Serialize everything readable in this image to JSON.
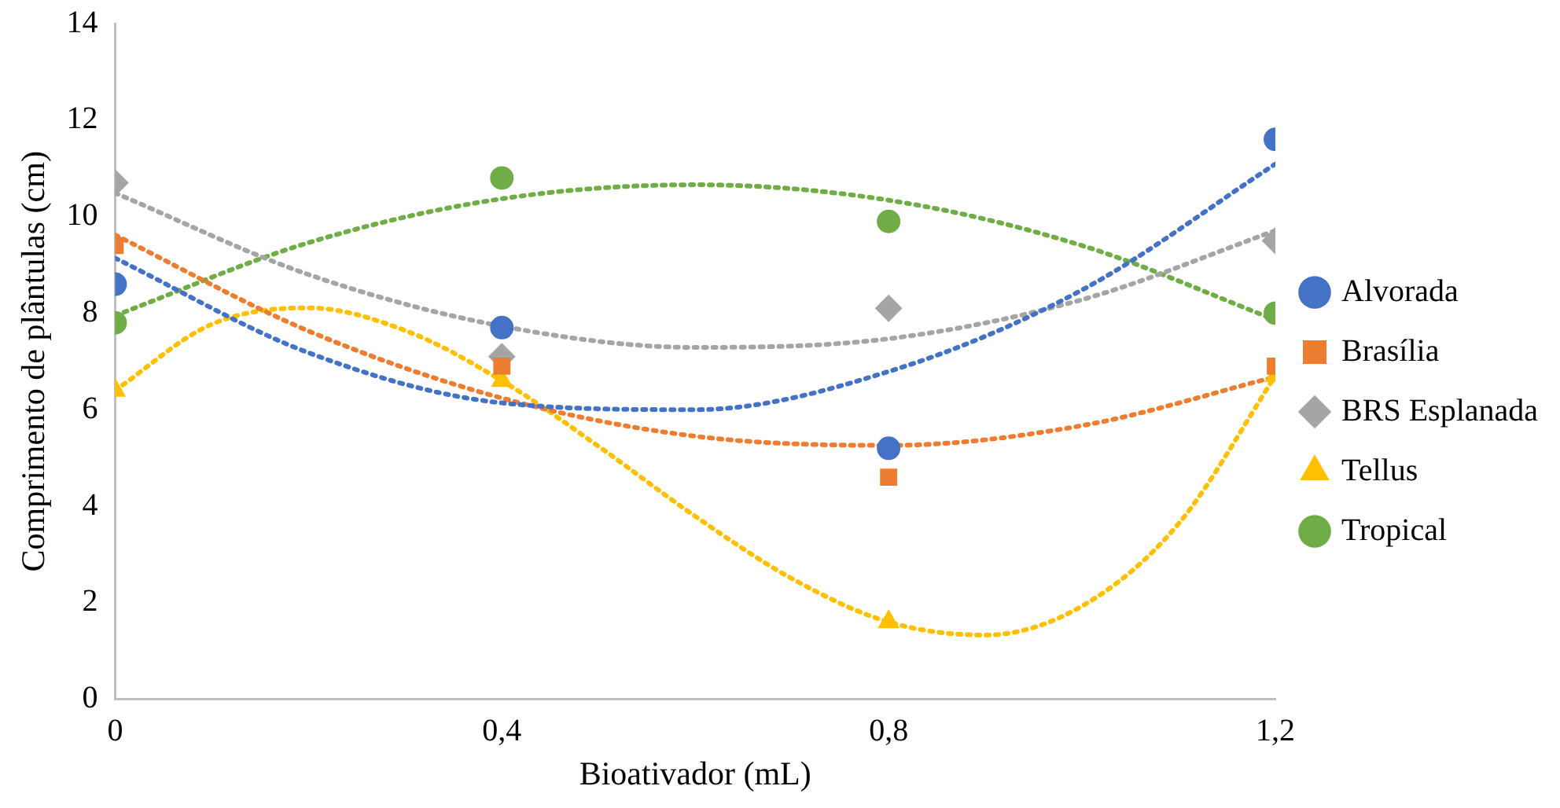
{
  "chart_data": {
    "type": "scatter",
    "xlabel": "Bioativador (mL)",
    "ylabel": "Comprimento de plântulas (cm)",
    "x": [
      0,
      0.4,
      0.8,
      1.2
    ],
    "xlim": [
      0,
      1.2
    ],
    "xticks": [
      0,
      {
        "value": 0.4,
        "label": "0,4"
      },
      {
        "value": 0.8,
        "label": "0,8"
      },
      {
        "value": 1.2,
        "label": "1,2"
      }
    ],
    "ylim": [
      0,
      14
    ],
    "yticks": [
      0,
      2,
      4,
      6,
      8,
      10,
      12,
      14
    ],
    "grid": false,
    "legend": "right",
    "series": [
      {
        "name": "Alvorada",
        "color": "#4472c4",
        "marker": "circle",
        "values": [
          8.6,
          7.7,
          5.2,
          11.6
        ]
      },
      {
        "name": "Brasília",
        "color": "#ed7d31",
        "marker": "square",
        "values": [
          9.4,
          6.9,
          4.6,
          6.9
        ]
      },
      {
        "name": "BRS Esplanada",
        "color": "#a5a5a5",
        "marker": "diamond",
        "values": [
          10.7,
          7.1,
          8.1,
          9.5
        ]
      },
      {
        "name": "Tellus",
        "color": "#ffc000",
        "marker": "triangle",
        "values": [
          6.4,
          6.6,
          1.6,
          6.7
        ]
      },
      {
        "name": "Tropical",
        "color": "#70ad47",
        "marker": "circle",
        "values": [
          7.8,
          10.8,
          9.9,
          8.0
        ]
      },
      {
        "type": "line",
        "color": "#4472c4",
        "marker": "none",
        "line_style": "dotted",
        "x": [
          0,
          0.2,
          0.4,
          0.6,
          0.8,
          1.0,
          1.2
        ],
        "values": [
          9.14,
          7.18,
          6.14,
          6.0,
          6.79,
          8.48,
          11.09
        ]
      },
      {
        "type": "line",
        "color": "#ed7d31",
        "marker": "none",
        "line_style": "dotted",
        "x": [
          0,
          0.2,
          0.4,
          0.6,
          0.8,
          1.0,
          1.2
        ],
        "values": [
          9.62,
          7.63,
          6.24,
          5.45,
          5.26,
          5.67,
          6.68
        ]
      },
      {
        "type": "line",
        "color": "#a5a5a5",
        "marker": "none",
        "line_style": "dotted",
        "x": [
          0,
          0.2,
          0.4,
          0.6,
          0.8,
          1.0,
          1.2
        ],
        "values": [
          10.49,
          8.8,
          7.73,
          7.29,
          7.47,
          8.28,
          9.71
        ]
      },
      {
        "type": "line",
        "color": "#ffc000",
        "marker": "none",
        "line_style": "dotted",
        "x": [
          0,
          0.1,
          0.2,
          0.3,
          0.4,
          0.5,
          0.6,
          0.7,
          0.8,
          0.9,
          1.0,
          1.1,
          1.2
        ],
        "values": [
          6.4,
          7.77,
          8.11,
          7.64,
          6.6,
          5.24,
          3.79,
          2.5,
          1.6,
          1.33,
          1.93,
          3.64,
          6.7
        ]
      },
      {
        "type": "line",
        "color": "#70ad47",
        "marker": "none",
        "line_style": "dotted",
        "x": [
          0,
          0.2,
          0.4,
          0.6,
          0.8,
          1.0,
          1.2
        ],
        "values": [
          7.95,
          9.46,
          10.37,
          10.66,
          10.34,
          9.4,
          7.86
        ]
      }
    ]
  }
}
